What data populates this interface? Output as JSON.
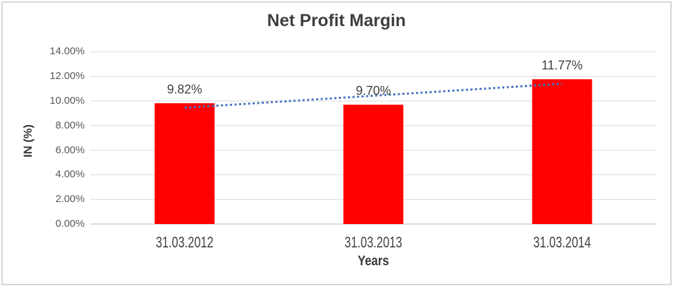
{
  "chart_data": {
    "type": "bar",
    "title": "Net Profit Margin",
    "xlabel": "Years",
    "ylabel": "IN (%)",
    "categories": [
      "31.03.2012",
      "31.03.2013",
      "31.03.2014"
    ],
    "values": [
      9.82,
      9.7,
      11.77
    ],
    "data_labels": [
      "9.82%",
      "9.70%",
      "11.77%"
    ],
    "ylim": [
      0,
      14
    ],
    "ytick_step": 2,
    "ytick_labels": [
      "0.00%",
      "2.00%",
      "4.00%",
      "6.00%",
      "8.00%",
      "10.00%",
      "12.00%",
      "14.00%"
    ],
    "grid": true,
    "legend": "none",
    "bar_color": "#ff0000",
    "gridline_color": "#d9d9d9",
    "axis_line_color": "#d2d2d2",
    "trendline": {
      "type": "linear",
      "style": "dotted",
      "color": "#4472c4"
    }
  }
}
